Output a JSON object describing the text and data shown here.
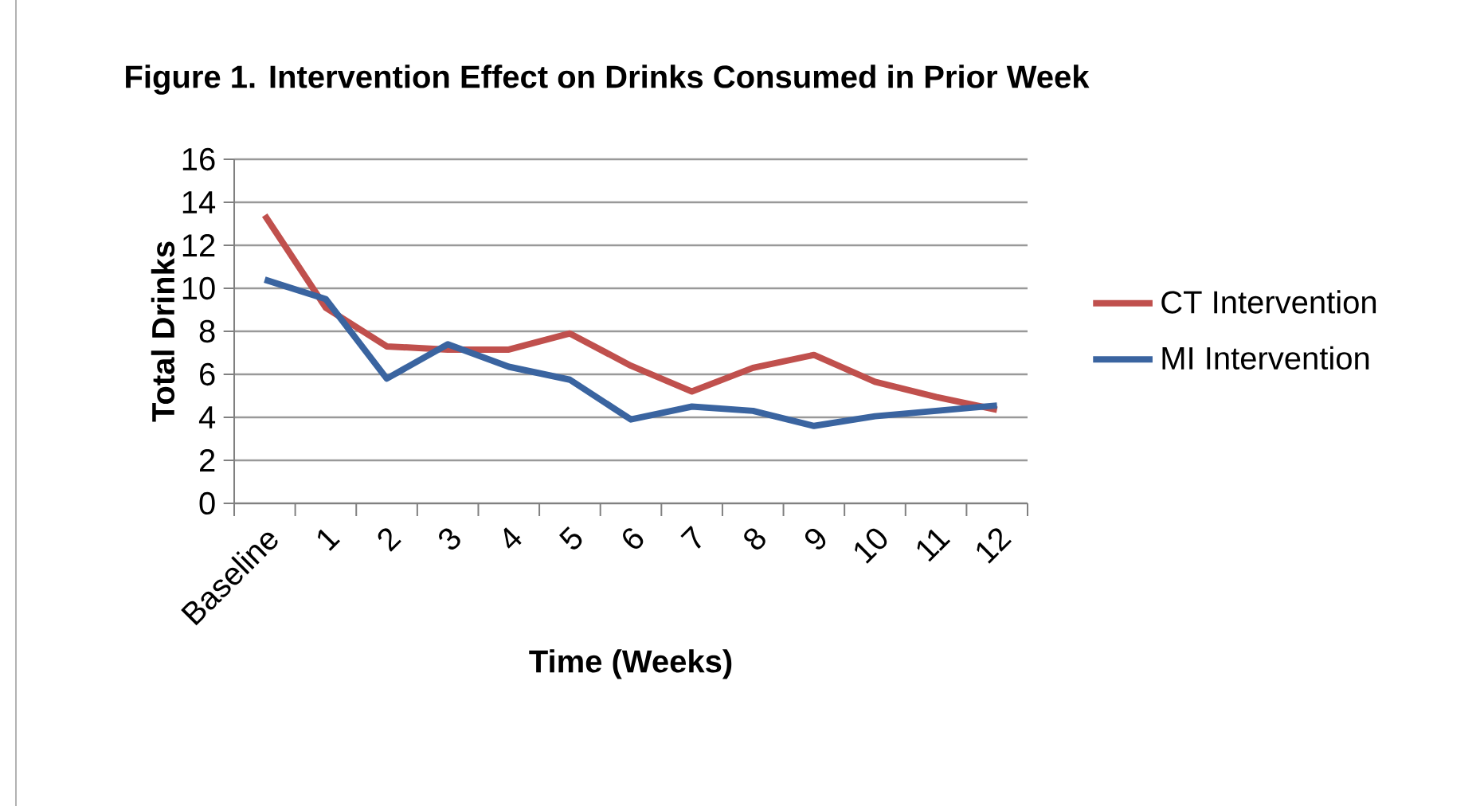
{
  "chart_data": {
    "type": "line",
    "title": "Figure 1. Intervention Effect on Drinks Consumed in Prior Week",
    "xlabel": "Time (Weeks)",
    "ylabel": "Total Drinks",
    "categories": [
      "Baseline",
      "1",
      "2",
      "3",
      "4",
      "5",
      "6",
      "7",
      "8",
      "9",
      "10",
      "11",
      "12"
    ],
    "series": [
      {
        "name": "CT Intervention",
        "color": "#c0504d",
        "values": [
          13.4,
          9.1,
          7.3,
          7.15,
          7.15,
          7.9,
          6.4,
          5.2,
          6.3,
          6.9,
          5.65,
          4.95,
          4.35
        ]
      },
      {
        "name": "MI Intervention",
        "color": "#3a64a0",
        "values": [
          10.4,
          9.5,
          5.8,
          7.4,
          6.35,
          5.75,
          3.9,
          4.5,
          4.3,
          3.6,
          4.05,
          4.3,
          4.55
        ]
      }
    ],
    "ylim": [
      0,
      16
    ],
    "yticks": [
      0,
      2,
      4,
      6,
      8,
      10,
      12,
      14,
      16
    ],
    "grid": "y",
    "legend": "right"
  }
}
